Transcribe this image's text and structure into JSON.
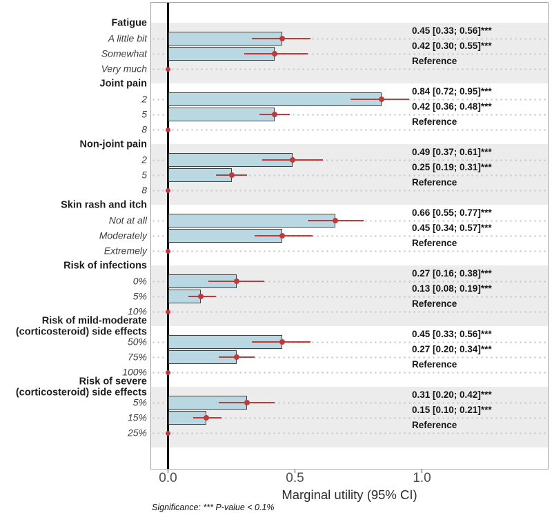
{
  "chart_data": {
    "type": "bar",
    "orientation": "horizontal",
    "title": "",
    "xlabel": "Marginal utility (95% CI)",
    "x_ticks": [
      "0.0",
      "0.5",
      "1.0"
    ],
    "x_tick_values": [
      0,
      0.5,
      1.0
    ],
    "xlim": [
      -0.07,
      1.5
    ],
    "grid": "dotted-horizontal-per-row",
    "legend": "none",
    "footnote": "Significance: *** P-value < 0.1%",
    "colors": {
      "bar_fill": "#b9d8e2",
      "bar_border": "#3f3f3f",
      "ci_red": "#bf3b3b",
      "band_gray": "#ececec",
      "zero_line": "#0a0a0a"
    },
    "sections": [
      {
        "header_lines": [
          "Fatigue"
        ],
        "shaded": true,
        "items": [
          {
            "label": "A little bit",
            "value": 0.45,
            "ci_low": 0.33,
            "ci_high": 0.56,
            "annotation": "0.45 [0.33; 0.56]***",
            "reference": false
          },
          {
            "label": "Somewhat",
            "value": 0.42,
            "ci_low": 0.3,
            "ci_high": 0.55,
            "annotation": "0.42 [0.30; 0.55]***",
            "reference": false
          },
          {
            "label": "Very much",
            "value": 0,
            "ci_low": null,
            "ci_high": null,
            "annotation": "Reference",
            "reference": true
          }
        ]
      },
      {
        "header_lines": [
          "Joint pain"
        ],
        "shaded": false,
        "items": [
          {
            "label": "2",
            "value": 0.84,
            "ci_low": 0.72,
            "ci_high": 0.95,
            "annotation": "0.84 [0.72; 0.95]***",
            "reference": false
          },
          {
            "label": "5",
            "value": 0.42,
            "ci_low": 0.36,
            "ci_high": 0.48,
            "annotation": "0.42 [0.36; 0.48]***",
            "reference": false
          },
          {
            "label": "8",
            "value": 0,
            "ci_low": null,
            "ci_high": null,
            "annotation": "Reference",
            "reference": true
          }
        ]
      },
      {
        "header_lines": [
          "Non-joint pain"
        ],
        "shaded": true,
        "items": [
          {
            "label": "2",
            "value": 0.49,
            "ci_low": 0.37,
            "ci_high": 0.61,
            "annotation": "0.49 [0.37; 0.61]***",
            "reference": false
          },
          {
            "label": "5",
            "value": 0.25,
            "ci_low": 0.19,
            "ci_high": 0.31,
            "annotation": "0.25 [0.19; 0.31]***",
            "reference": false
          },
          {
            "label": "8",
            "value": 0,
            "ci_low": null,
            "ci_high": null,
            "annotation": "Reference",
            "reference": true
          }
        ]
      },
      {
        "header_lines": [
          "Skin rash and itch"
        ],
        "shaded": false,
        "items": [
          {
            "label": "Not at all",
            "value": 0.66,
            "ci_low": 0.55,
            "ci_high": 0.77,
            "annotation": "0.66 [0.55; 0.77]***",
            "reference": false
          },
          {
            "label": "Moderately",
            "value": 0.45,
            "ci_low": 0.34,
            "ci_high": 0.57,
            "annotation": "0.45 [0.34; 0.57]***",
            "reference": false
          },
          {
            "label": "Extremely",
            "value": 0,
            "ci_low": null,
            "ci_high": null,
            "annotation": "Reference",
            "reference": true
          }
        ]
      },
      {
        "header_lines": [
          "Risk of infections"
        ],
        "shaded": true,
        "items": [
          {
            "label": "0%",
            "value": 0.27,
            "ci_low": 0.16,
            "ci_high": 0.38,
            "annotation": "0.27 [0.16; 0.38]***",
            "reference": false
          },
          {
            "label": "5%",
            "value": 0.13,
            "ci_low": 0.08,
            "ci_high": 0.19,
            "annotation": "0.13 [0.08; 0.19]***",
            "reference": false
          },
          {
            "label": "10%",
            "value": 0,
            "ci_low": null,
            "ci_high": null,
            "annotation": "Reference",
            "reference": true
          }
        ]
      },
      {
        "header_lines": [
          "Risk of mild-moderate",
          "(corticosteroid) side effects"
        ],
        "shaded": false,
        "items": [
          {
            "label": "50%",
            "value": 0.45,
            "ci_low": 0.33,
            "ci_high": 0.56,
            "annotation": "0.45 [0.33; 0.56]***",
            "reference": false
          },
          {
            "label": "75%",
            "value": 0.27,
            "ci_low": 0.2,
            "ci_high": 0.34,
            "annotation": "0.27 [0.20; 0.34]***",
            "reference": false
          },
          {
            "label": "100%",
            "value": 0,
            "ci_low": null,
            "ci_high": null,
            "annotation": "Reference",
            "reference": true
          }
        ]
      },
      {
        "header_lines": [
          "Risk of severe",
          "(corticosteroid) side effects"
        ],
        "shaded": true,
        "items": [
          {
            "label": "5%",
            "value": 0.31,
            "ci_low": 0.2,
            "ci_high": 0.42,
            "annotation": "0.31 [0.20; 0.42]***",
            "reference": false
          },
          {
            "label": "15%",
            "value": 0.15,
            "ci_low": 0.1,
            "ci_high": 0.21,
            "annotation": "0.15 [0.10; 0.21]***",
            "reference": false
          },
          {
            "label": "25%",
            "value": 0,
            "ci_low": null,
            "ci_high": null,
            "annotation": "Reference",
            "reference": true
          }
        ]
      }
    ]
  }
}
